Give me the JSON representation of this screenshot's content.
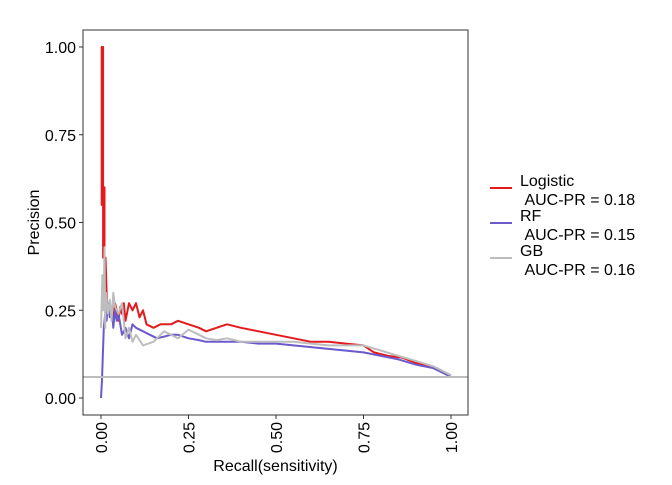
{
  "chart_data": {
    "type": "line",
    "title": "",
    "xlabel": "Recall(sensitivity)",
    "ylabel": "Precision",
    "xlim": [
      0,
      1
    ],
    "ylim": [
      0,
      1
    ],
    "x_ticks": [
      "0.00",
      "0.25",
      "0.50",
      "0.75",
      "1.00"
    ],
    "y_ticks": [
      "0.00",
      "0.25",
      "0.50",
      "0.75",
      "1.00"
    ],
    "grid": false,
    "legend_position": "right",
    "baseline": {
      "y": 0.06,
      "color": "#bdbdbd"
    },
    "series": [
      {
        "name": "Logistic\n AUC-PR = 0.18",
        "color": "#e41a1c",
        "points": [
          [
            0.0,
            1.0
          ],
          [
            0.002,
            1.0
          ],
          [
            0.002,
            0.55
          ],
          [
            0.004,
            0.55
          ],
          [
            0.004,
            1.0
          ],
          [
            0.006,
            1.0
          ],
          [
            0.006,
            0.4
          ],
          [
            0.008,
            0.4
          ],
          [
            0.008,
            0.6
          ],
          [
            0.01,
            0.6
          ],
          [
            0.01,
            0.3
          ],
          [
            0.013,
            0.3
          ],
          [
            0.013,
            0.4
          ],
          [
            0.016,
            0.3
          ],
          [
            0.018,
            0.25
          ],
          [
            0.022,
            0.24
          ],
          [
            0.03,
            0.26
          ],
          [
            0.035,
            0.22
          ],
          [
            0.04,
            0.27
          ],
          [
            0.045,
            0.25
          ],
          [
            0.05,
            0.22
          ],
          [
            0.055,
            0.26
          ],
          [
            0.06,
            0.24
          ],
          [
            0.065,
            0.27
          ],
          [
            0.07,
            0.22
          ],
          [
            0.08,
            0.27
          ],
          [
            0.09,
            0.25
          ],
          [
            0.1,
            0.27
          ],
          [
            0.11,
            0.23
          ],
          [
            0.12,
            0.25
          ],
          [
            0.13,
            0.21
          ],
          [
            0.15,
            0.2
          ],
          [
            0.17,
            0.21
          ],
          [
            0.2,
            0.21
          ],
          [
            0.22,
            0.22
          ],
          [
            0.25,
            0.21
          ],
          [
            0.28,
            0.2
          ],
          [
            0.3,
            0.19
          ],
          [
            0.33,
            0.2
          ],
          [
            0.36,
            0.21
          ],
          [
            0.4,
            0.2
          ],
          [
            0.45,
            0.19
          ],
          [
            0.5,
            0.18
          ],
          [
            0.55,
            0.17
          ],
          [
            0.6,
            0.16
          ],
          [
            0.65,
            0.16
          ],
          [
            0.7,
            0.155
          ],
          [
            0.75,
            0.15
          ],
          [
            0.78,
            0.13
          ],
          [
            0.82,
            0.12
          ],
          [
            0.86,
            0.115
          ],
          [
            0.9,
            0.1
          ],
          [
            0.94,
            0.09
          ],
          [
            0.97,
            0.08
          ],
          [
            1.0,
            0.06
          ]
        ]
      },
      {
        "name": "RF\n AUC-PR = 0.15",
        "color": "#6a5acd",
        "points": [
          [
            0.0,
            0.0
          ],
          [
            0.003,
            0.05
          ],
          [
            0.005,
            0.12
          ],
          [
            0.008,
            0.2
          ],
          [
            0.012,
            0.24
          ],
          [
            0.016,
            0.22
          ],
          [
            0.02,
            0.27
          ],
          [
            0.025,
            0.23
          ],
          [
            0.03,
            0.26
          ],
          [
            0.035,
            0.2
          ],
          [
            0.04,
            0.25
          ],
          [
            0.045,
            0.22
          ],
          [
            0.05,
            0.24
          ],
          [
            0.06,
            0.18
          ],
          [
            0.07,
            0.2
          ],
          [
            0.08,
            0.17
          ],
          [
            0.09,
            0.21
          ],
          [
            0.1,
            0.2
          ],
          [
            0.12,
            0.19
          ],
          [
            0.14,
            0.18
          ],
          [
            0.16,
            0.17
          ],
          [
            0.18,
            0.175
          ],
          [
            0.2,
            0.18
          ],
          [
            0.22,
            0.18
          ],
          [
            0.25,
            0.17
          ],
          [
            0.28,
            0.165
          ],
          [
            0.3,
            0.16
          ],
          [
            0.35,
            0.16
          ],
          [
            0.4,
            0.16
          ],
          [
            0.45,
            0.155
          ],
          [
            0.5,
            0.155
          ],
          [
            0.55,
            0.15
          ],
          [
            0.6,
            0.145
          ],
          [
            0.65,
            0.14
          ],
          [
            0.7,
            0.135
          ],
          [
            0.75,
            0.13
          ],
          [
            0.8,
            0.12
          ],
          [
            0.85,
            0.11
          ],
          [
            0.9,
            0.095
          ],
          [
            0.95,
            0.085
          ],
          [
            1.0,
            0.06
          ]
        ]
      },
      {
        "name": "GB\n AUC-PR = 0.16",
        "color": "#bdbdbd",
        "points": [
          [
            0.0,
            0.2
          ],
          [
            0.004,
            0.35
          ],
          [
            0.006,
            0.25
          ],
          [
            0.008,
            0.3
          ],
          [
            0.01,
            0.43
          ],
          [
            0.012,
            0.2
          ],
          [
            0.014,
            0.3
          ],
          [
            0.02,
            0.24
          ],
          [
            0.025,
            0.28
          ],
          [
            0.03,
            0.22
          ],
          [
            0.035,
            0.3
          ],
          [
            0.04,
            0.26
          ],
          [
            0.05,
            0.24
          ],
          [
            0.06,
            0.27
          ],
          [
            0.07,
            0.17
          ],
          [
            0.08,
            0.2
          ],
          [
            0.09,
            0.16
          ],
          [
            0.1,
            0.18
          ],
          [
            0.12,
            0.15
          ],
          [
            0.15,
            0.16
          ],
          [
            0.18,
            0.19
          ],
          [
            0.22,
            0.17
          ],
          [
            0.25,
            0.195
          ],
          [
            0.28,
            0.18
          ],
          [
            0.3,
            0.17
          ],
          [
            0.33,
            0.165
          ],
          [
            0.36,
            0.17
          ],
          [
            0.4,
            0.16
          ],
          [
            0.45,
            0.16
          ],
          [
            0.5,
            0.16
          ],
          [
            0.55,
            0.16
          ],
          [
            0.6,
            0.155
          ],
          [
            0.65,
            0.15
          ],
          [
            0.7,
            0.15
          ],
          [
            0.75,
            0.15
          ],
          [
            0.8,
            0.135
          ],
          [
            0.85,
            0.12
          ],
          [
            0.9,
            0.105
          ],
          [
            0.95,
            0.09
          ],
          [
            1.0,
            0.065
          ]
        ]
      }
    ]
  }
}
